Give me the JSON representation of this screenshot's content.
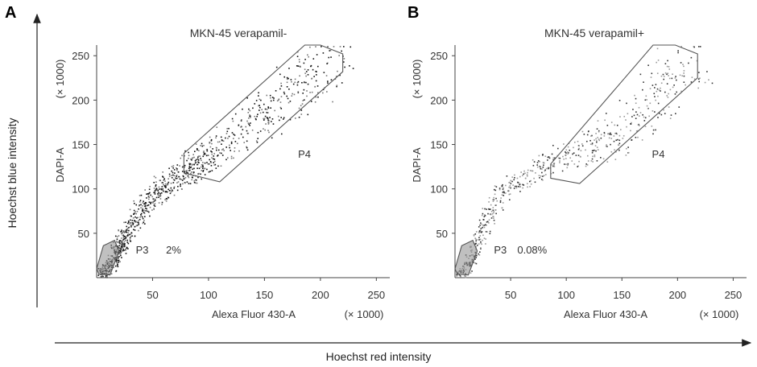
{
  "figure": {
    "outer_y_label": "Hoechst blue intensity",
    "outer_x_label": "Hoechst red intensity"
  },
  "chart_data": [
    {
      "type": "scatter",
      "panel": "A",
      "title": "MKN-45 verapamil-",
      "xlabel": "Alexa Fluor 430-A",
      "x_multiplier": "(× 1000)",
      "ylabel": "DAPI-A",
      "y_multiplier": "(× 1000)",
      "xlim": [
        0,
        262
      ],
      "ylim": [
        0,
        262
      ],
      "x_ticks": [
        50,
        100,
        150,
        200,
        250
      ],
      "y_ticks": [
        50,
        100,
        150,
        200,
        250
      ],
      "grid": false,
      "gates": [
        {
          "name": "P3",
          "percent": "2%",
          "polygon": [
            [
              2,
              4
            ],
            [
              12,
              3
            ],
            [
              20,
              30
            ],
            [
              16,
              42
            ],
            [
              6,
              36
            ],
            [
              0,
              10
            ]
          ]
        },
        {
          "name": "P4",
          "polygon": [
            [
              78,
              118
            ],
            [
              110,
              108
            ],
            [
              220,
              232
            ],
            [
              220,
              252
            ],
            [
              200,
              262
            ],
            [
              186,
              262
            ],
            [
              78,
              140
            ]
          ]
        }
      ],
      "series": [
        {
          "density": "high",
          "color": "#111111",
          "values": [
            [
              5,
              6
            ],
            [
              9,
              9
            ],
            [
              12,
              14
            ],
            [
              14,
              20
            ],
            [
              16,
              25
            ],
            [
              18,
              30
            ],
            [
              20,
              35
            ],
            [
              22,
              40
            ],
            [
              25,
              47
            ],
            [
              28,
              55
            ],
            [
              32,
              62
            ],
            [
              36,
              70
            ],
            [
              40,
              78
            ],
            [
              45,
              85
            ],
            [
              50,
              92
            ],
            [
              55,
              98
            ],
            [
              60,
              103
            ],
            [
              65,
              108
            ],
            [
              70,
              112
            ],
            [
              75,
              117
            ],
            [
              80,
              121
            ],
            [
              85,
              125
            ],
            [
              90,
              130
            ],
            [
              95,
              135
            ],
            [
              100,
              140
            ],
            [
              110,
              148
            ],
            [
              120,
              156
            ],
            [
              130,
              165
            ],
            [
              140,
              175
            ],
            [
              150,
              185
            ],
            [
              160,
              195
            ],
            [
              170,
              205
            ],
            [
              180,
              215
            ],
            [
              190,
              225
            ],
            [
              200,
              235
            ],
            [
              210,
              245
            ]
          ]
        }
      ]
    },
    {
      "type": "scatter",
      "panel": "B",
      "title": "MKN-45 verapamil+",
      "xlabel": "Alexa Fluor 430-A",
      "x_multiplier": "(× 1000)",
      "ylabel": "DAPI-A",
      "y_multiplier": "(× 1000)",
      "xlim": [
        0,
        262
      ],
      "ylim": [
        0,
        262
      ],
      "x_ticks": [
        50,
        100,
        150,
        200,
        250
      ],
      "y_ticks": [
        50,
        100,
        150,
        200,
        250
      ],
      "grid": false,
      "gates": [
        {
          "name": "P3",
          "percent": "0.08%",
          "polygon": [
            [
              2,
              4
            ],
            [
              12,
              3
            ],
            [
              20,
              30
            ],
            [
              16,
              42
            ],
            [
              6,
              36
            ],
            [
              0,
              10
            ]
          ]
        },
        {
          "name": "P4",
          "polygon": [
            [
              86,
              112
            ],
            [
              112,
              106
            ],
            [
              218,
              225
            ],
            [
              218,
              252
            ],
            [
              198,
              262
            ],
            [
              178,
              262
            ],
            [
              86,
              128
            ]
          ]
        }
      ],
      "series": [
        {
          "density": "high",
          "color": "#444444",
          "values": [
            [
              5,
              6
            ],
            [
              10,
              12
            ],
            [
              14,
              20
            ],
            [
              18,
              32
            ],
            [
              22,
              45
            ],
            [
              26,
              58
            ],
            [
              30,
              70
            ],
            [
              36,
              82
            ],
            [
              42,
              95
            ],
            [
              50,
              105
            ],
            [
              60,
              112
            ],
            [
              70,
              118
            ],
            [
              80,
              124
            ],
            [
              90,
              130
            ],
            [
              100,
              136
            ],
            [
              110,
              142
            ],
            [
              120,
              147
            ],
            [
              130,
              150
            ],
            [
              140,
              156
            ],
            [
              150,
              165
            ],
            [
              160,
              178
            ],
            [
              170,
              190
            ],
            [
              180,
              205
            ],
            [
              190,
              220
            ],
            [
              200,
              235
            ],
            [
              210,
              245
            ]
          ]
        }
      ]
    }
  ]
}
